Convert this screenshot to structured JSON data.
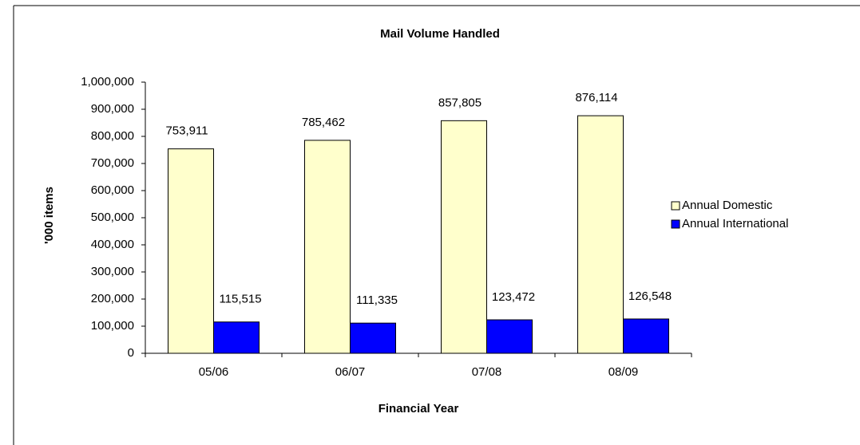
{
  "chart_data": {
    "type": "bar",
    "title": "Mail Volume Handled",
    "x_label": "Financial Year",
    "y_label": "'000 items",
    "categories": [
      "05/06",
      "06/07",
      "07/08",
      "08/09"
    ],
    "series": [
      {
        "name": "Annual Domestic",
        "color": "#ffffcc",
        "values": [
          753911,
          785462,
          857805,
          876114
        ],
        "value_labels": [
          "753,911",
          "785,462",
          "857,805",
          "876,114"
        ]
      },
      {
        "name": "Annual International",
        "color": "#0000ff",
        "values": [
          115515,
          111335,
          123472,
          126548
        ],
        "value_labels": [
          "115,515",
          "111,335",
          "123,472",
          "126,548"
        ]
      }
    ],
    "ylim": [
      0,
      1000000
    ],
    "yticks": [
      0,
      {
        "value": 100000,
        "label": "100,000"
      },
      {
        "value": 200000,
        "label": "200,000"
      },
      {
        "value": 300000,
        "label": "300,000"
      },
      {
        "value": 400000,
        "label": "400,000"
      },
      {
        "value": 500000,
        "label": "500,000"
      },
      {
        "value": 600000,
        "label": "600,000"
      },
      {
        "value": 700000,
        "label": "700,000"
      },
      {
        "value": 800000,
        "label": "800,000"
      },
      {
        "value": 900000,
        "label": "900,000"
      },
      {
        "value": 1000000,
        "label": "1,000,000"
      }
    ],
    "legend": "right",
    "grid": false
  }
}
